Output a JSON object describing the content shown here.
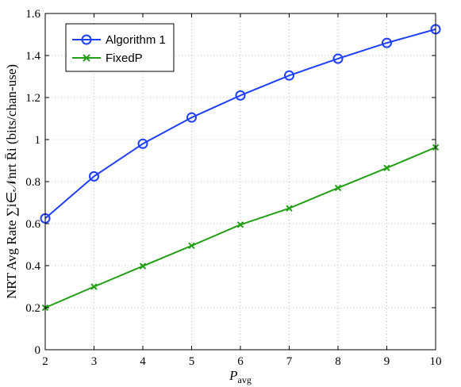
{
  "chart_data": {
    "type": "line",
    "x": [
      2,
      3,
      4,
      5,
      6,
      7,
      8,
      9,
      10
    ],
    "xlim": [
      2,
      10
    ],
    "ylim": [
      0,
      1.6
    ],
    "xticks": [
      "2",
      "3",
      "4",
      "5",
      "6",
      "7",
      "8",
      "9",
      "10"
    ],
    "yticks": [
      "0",
      "0.2",
      "0.4",
      "0.6",
      "0.8",
      "1",
      "1.2",
      "1.4",
      "1.6"
    ],
    "xlabel": {
      "main": "P",
      "sub": "avg"
    },
    "ylabel": "NRT Avg Rate ∑i∈𝒩nrt R̄i (bits/chan-use)",
    "grid": true,
    "legend_position": "top-left",
    "series": [
      {
        "name": "Algorithm 1",
        "color": "#1f3fff",
        "marker": "circle",
        "values": [
          0.625,
          0.825,
          0.98,
          1.105,
          1.21,
          1.305,
          1.385,
          1.46,
          1.525
        ]
      },
      {
        "name": "FixedP",
        "color": "#22a015",
        "marker": "x",
        "values": [
          0.2,
          0.3,
          0.398,
          0.495,
          0.595,
          0.673,
          0.77,
          0.865,
          0.963
        ]
      }
    ]
  }
}
